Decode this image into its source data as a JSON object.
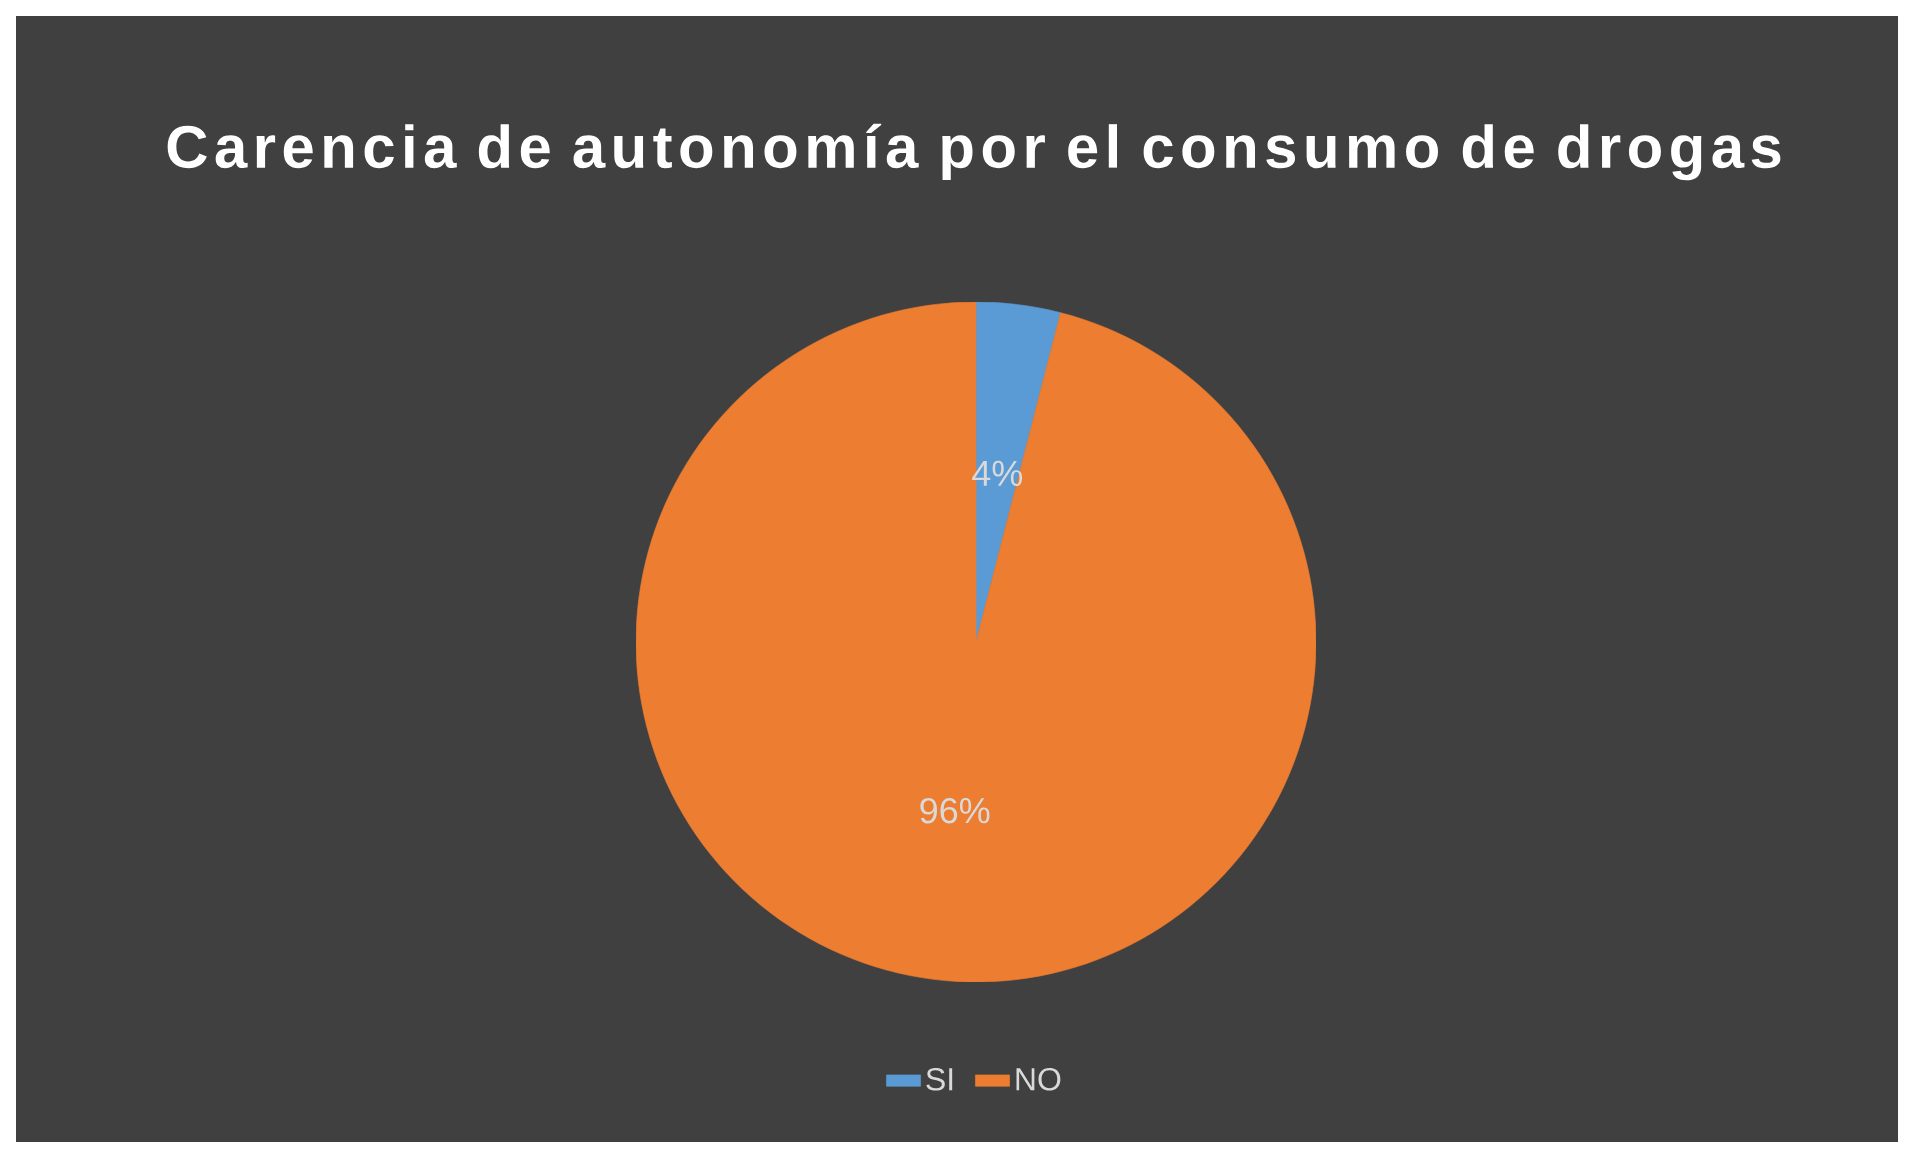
{
  "chart_data": {
    "type": "pie",
    "title": "Carencia de autonomía por el consumo de drogas",
    "categories": [
      "SI",
      "NO"
    ],
    "values": [
      4,
      96
    ],
    "value_labels": [
      "4%",
      "96%"
    ],
    "colors": [
      "#5b9bd5",
      "#ed7d31"
    ],
    "legend": "bottom"
  }
}
